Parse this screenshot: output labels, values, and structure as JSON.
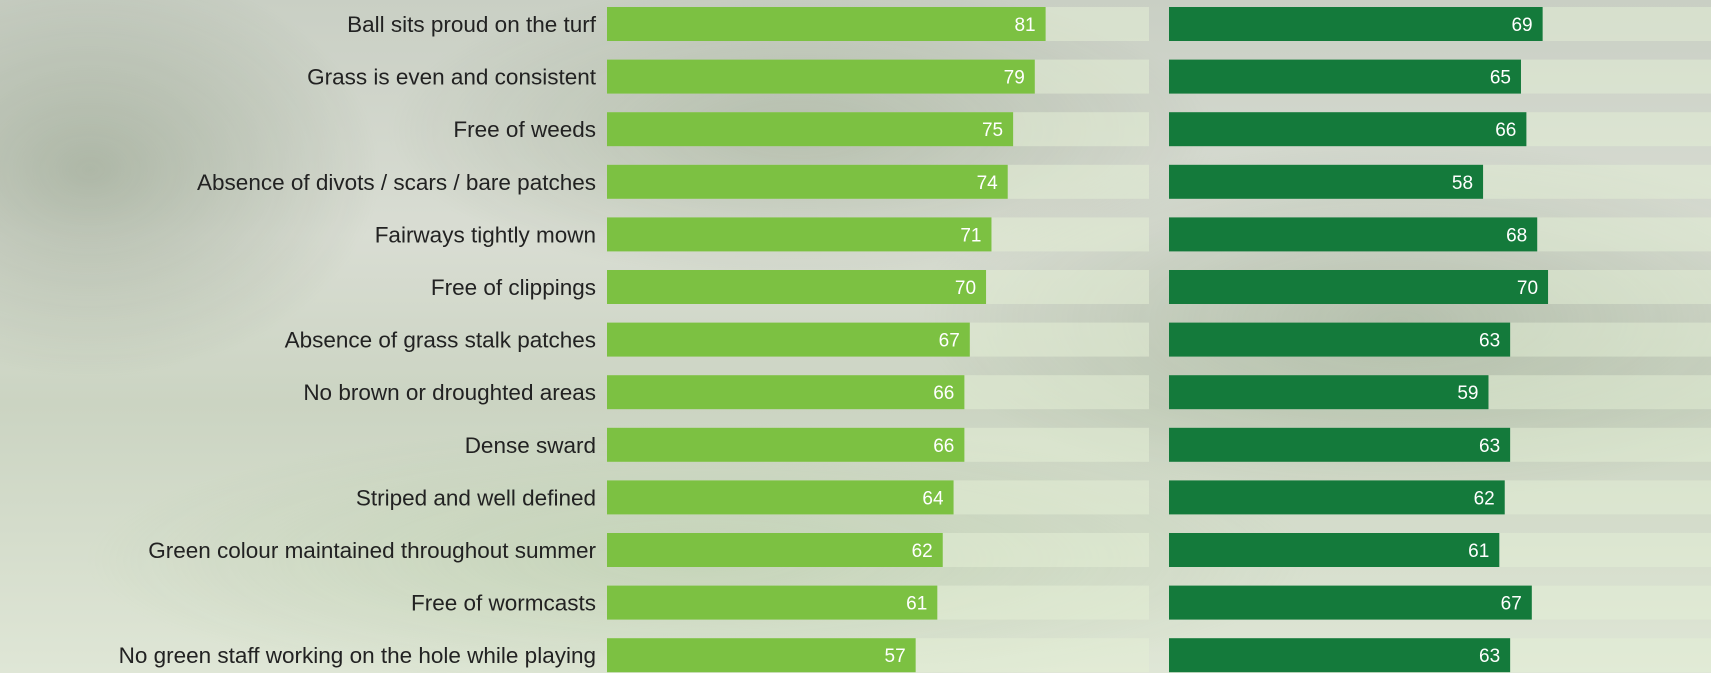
{
  "chart_data": {
    "type": "bar",
    "orientation": "horizontal",
    "categories": [
      "Ball sits proud on the turf",
      "Grass is even and consistent",
      "Free of weeds",
      "Absence of divots / scars / bare patches",
      "Fairways tightly mown",
      "Free of clippings",
      "Absence of grass stalk patches",
      "No brown or droughted areas",
      "Dense sward",
      "Striped and well defined",
      "Green colour maintained throughout summer",
      "Free of wormcasts",
      "No green staff working on the hole while playing"
    ],
    "series": [
      {
        "values": [
          81,
          79,
          75,
          74,
          71,
          70,
          67,
          66,
          66,
          64,
          62,
          61,
          57
        ],
        "color": "#7cc142"
      },
      {
        "values": [
          69,
          65,
          66,
          58,
          68,
          70,
          63,
          59,
          63,
          62,
          61,
          67,
          63
        ],
        "color": "#147a3b"
      }
    ],
    "xlim": [
      0,
      100
    ],
    "grid": false,
    "legend": "none",
    "track_color": "#e3efd6"
  }
}
